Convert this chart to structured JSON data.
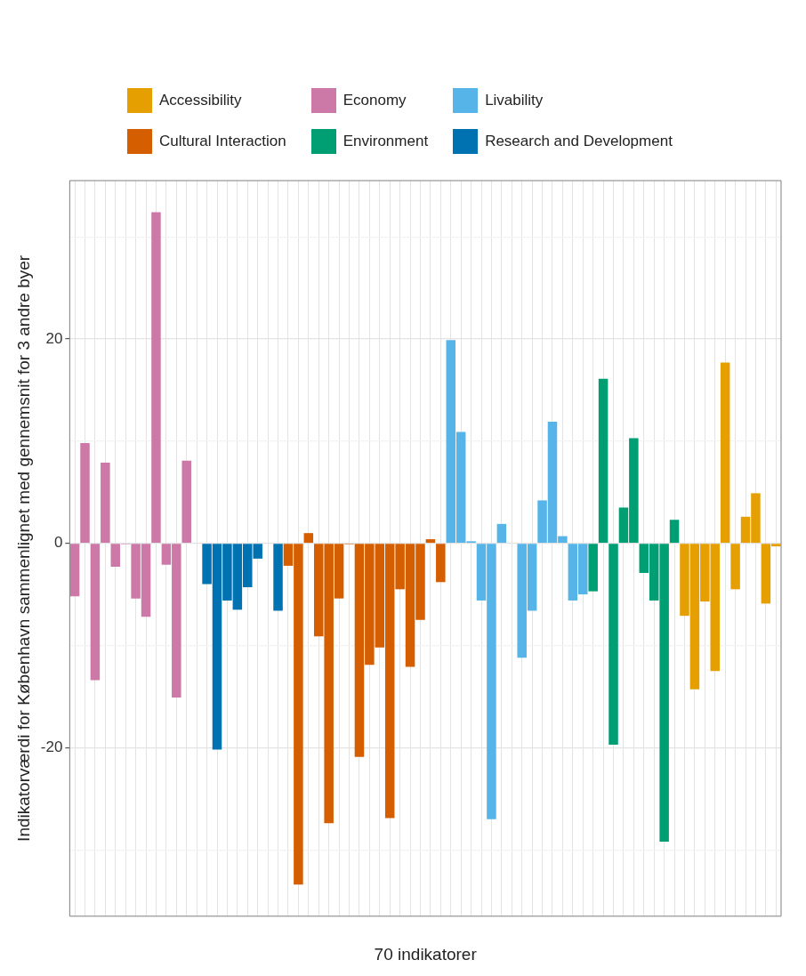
{
  "chart_data": {
    "type": "bar",
    "xlabel": "70 indikatorer",
    "ylabel": "Indikatorværdi for København sammenlignet med gennemsnit for 3 andre byer",
    "categories": [
      null,
      null,
      null,
      null,
      null,
      null,
      null,
      null,
      null,
      null,
      null,
      null,
      null,
      null,
      null,
      null,
      null,
      null,
      null,
      null,
      null,
      null,
      null,
      null,
      null,
      null,
      null,
      null,
      null,
      null,
      null,
      null,
      null,
      null,
      null,
      null,
      null,
      null,
      null,
      null,
      null,
      null,
      null,
      null,
      null,
      null,
      null,
      null,
      null,
      null,
      null,
      null,
      null,
      null,
      null,
      null,
      null,
      null,
      null,
      null,
      null,
      null,
      null,
      null,
      null,
      null,
      null,
      null,
      null,
      null
    ],
    "series": [
      {
        "name": "Accessibility",
        "color": "#e69f00",
        "values": [
          null,
          null,
          null,
          null,
          null,
          null,
          null,
          null,
          null,
          null,
          null,
          null,
          null,
          null,
          null,
          null,
          null,
          null,
          null,
          null,
          null,
          null,
          null,
          null,
          null,
          null,
          null,
          null,
          null,
          null,
          null,
          null,
          null,
          null,
          null,
          null,
          null,
          null,
          null,
          null,
          null,
          null,
          null,
          null,
          null,
          null,
          null,
          null,
          null,
          null,
          null,
          null,
          null,
          null,
          null,
          null,
          null,
          null,
          null,
          null,
          -7.1,
          -14.3,
          -5.7,
          -12.5,
          17.7,
          -4.5,
          2.6,
          4.9,
          -5.9,
          -0.3
        ]
      },
      {
        "name": "Cultural Interaction",
        "color": "#d55e00",
        "values": [
          null,
          null,
          null,
          null,
          null,
          null,
          null,
          null,
          null,
          null,
          null,
          null,
          null,
          null,
          null,
          null,
          null,
          null,
          null,
          null,
          null,
          -2.2,
          -33.4,
          1.0,
          -9.1,
          -27.4,
          -5.4,
          -0.1,
          -20.9,
          -11.9,
          -10.2,
          -26.9,
          -4.5,
          -12.1,
          -7.5,
          0.4,
          -3.8,
          null,
          null,
          null,
          null,
          null,
          null,
          null,
          null,
          null,
          null,
          null,
          null,
          null,
          null,
          null,
          null,
          null,
          null,
          null,
          null,
          null,
          null,
          null,
          null,
          null,
          null,
          null,
          null,
          null,
          null,
          null,
          null,
          null
        ]
      },
      {
        "name": "Economy",
        "color": "#cc79a7",
        "values": [
          -5.2,
          9.8,
          -13.4,
          7.9,
          -2.3,
          -0.1,
          -5.4,
          -7.2,
          32.4,
          -2.1,
          -15.1,
          8.1,
          null,
          null,
          null,
          null,
          null,
          null,
          null,
          null,
          null,
          null,
          null,
          null,
          null,
          null,
          null,
          null,
          null,
          null,
          null,
          null,
          null,
          null,
          null,
          null,
          null,
          null,
          null,
          null,
          null,
          null,
          null,
          null,
          null,
          null,
          null,
          null,
          null,
          null,
          null,
          null,
          null,
          null,
          null,
          null,
          null,
          null,
          null,
          null,
          null,
          null,
          null,
          null,
          null,
          null,
          null,
          null,
          null,
          null
        ]
      },
      {
        "name": "Environment",
        "color": "#009e73",
        "values": [
          null,
          null,
          null,
          null,
          null,
          null,
          null,
          null,
          null,
          null,
          null,
          null,
          null,
          null,
          null,
          null,
          null,
          null,
          null,
          null,
          null,
          null,
          null,
          null,
          null,
          null,
          null,
          null,
          null,
          null,
          null,
          null,
          null,
          null,
          null,
          null,
          null,
          null,
          null,
          null,
          null,
          null,
          null,
          null,
          null,
          null,
          null,
          null,
          null,
          null,
          null,
          -4.7,
          16.1,
          -19.7,
          3.5,
          10.3,
          -2.9,
          -5.6,
          -29.2,
          2.3,
          null,
          null,
          null,
          null,
          null,
          null,
          null,
          null,
          null,
          null
        ]
      },
      {
        "name": "Livability",
        "color": "#56b4e9",
        "values": [
          null,
          null,
          null,
          null,
          null,
          null,
          null,
          null,
          null,
          null,
          null,
          null,
          null,
          null,
          null,
          null,
          null,
          null,
          null,
          null,
          null,
          null,
          null,
          null,
          null,
          null,
          null,
          null,
          null,
          null,
          null,
          null,
          null,
          null,
          null,
          null,
          null,
          19.9,
          10.9,
          0.2,
          -5.6,
          -27.0,
          1.9,
          null,
          -11.2,
          -6.6,
          4.2,
          11.9,
          0.7,
          -5.6,
          -5.0,
          null,
          null,
          null,
          null,
          null,
          null,
          null,
          null,
          null,
          null,
          null,
          null,
          null,
          null,
          null,
          null,
          null,
          null,
          null
        ]
      },
      {
        "name": "Research and Development",
        "color": "#0072b2",
        "values": [
          null,
          null,
          null,
          null,
          null,
          null,
          null,
          null,
          null,
          null,
          null,
          null,
          null,
          -4.0,
          -20.2,
          -5.6,
          -6.5,
          -4.3,
          -1.5,
          null,
          -6.6,
          null,
          null,
          null,
          null,
          null,
          null,
          null,
          null,
          null,
          null,
          null,
          null,
          null,
          null,
          null,
          null,
          null,
          null,
          null,
          null,
          null,
          null,
          null,
          null,
          null,
          null,
          null,
          null,
          null,
          null,
          null,
          null,
          null,
          null,
          null,
          null,
          null,
          null,
          null,
          null,
          null,
          null,
          null,
          null,
          null,
          null,
          null,
          null,
          null
        ]
      }
    ],
    "ylim": [
      -36.5,
      35.5
    ],
    "yticks": [
      {
        "value": -30,
        "label": null
      },
      -20,
      {
        "value": -10,
        "label": null
      },
      0,
      {
        "value": 10,
        "label": null
      },
      20,
      {
        "value": 30,
        "label": null
      }
    ],
    "grid": true,
    "legend": "top"
  }
}
